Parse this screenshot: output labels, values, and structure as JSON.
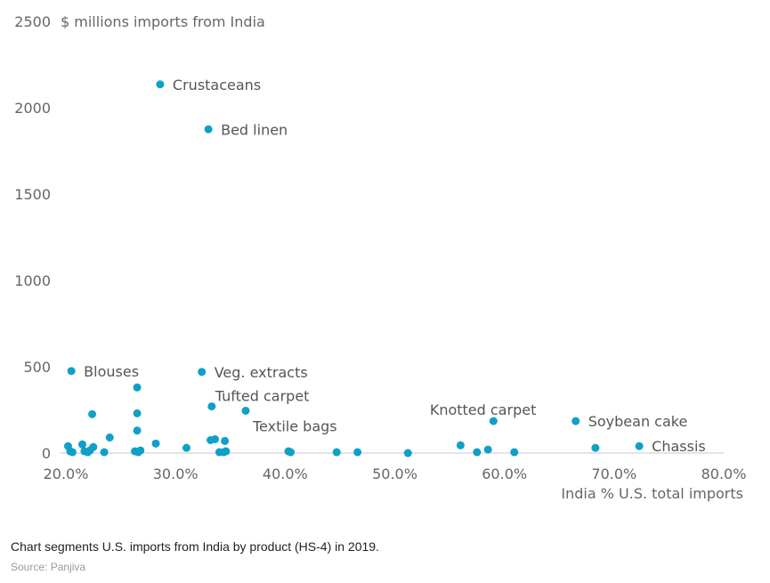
{
  "chart_data": {
    "type": "scatter",
    "ylabel": "$ millions imports from India",
    "xlabel": "India % U.S. total imports",
    "xlim": [
      20,
      80
    ],
    "ylim": [
      0,
      2500
    ],
    "x_ticks": [
      "20.0%",
      "30.0%",
      "40.0%",
      "50.0%",
      "60.0%",
      "70.0%",
      "80.0%"
    ],
    "x_tick_values": [
      20,
      30,
      40,
      50,
      60,
      70,
      80
    ],
    "y_ticks": [
      "0",
      "500",
      "1000",
      "1500",
      "2000",
      "2500"
    ],
    "y_tick_values": [
      0,
      500,
      1000,
      1500,
      2000,
      2500
    ],
    "point_color": "#0fa0c8",
    "grid": false,
    "points": [
      {
        "x": 28.6,
        "y": 2135,
        "label": "Crustaceans"
      },
      {
        "x": 33.0,
        "y": 1875,
        "label": "Bed linen"
      },
      {
        "x": 20.5,
        "y": 475,
        "label": "Blouses"
      },
      {
        "x": 32.4,
        "y": 470,
        "label": "Veg. extracts"
      },
      {
        "x": 33.3,
        "y": 270,
        "label": "Tufted carpet"
      },
      {
        "x": 36.4,
        "y": 245,
        "label": "Textile bags"
      },
      {
        "x": 59.0,
        "y": 185,
        "label": "Knotted carpet"
      },
      {
        "x": 66.5,
        "y": 185,
        "label": "Soybean cake"
      },
      {
        "x": 72.3,
        "y": 40,
        "label": "Chassis"
      },
      {
        "x": 26.5,
        "y": 380
      },
      {
        "x": 26.5,
        "y": 230
      },
      {
        "x": 26.5,
        "y": 130
      },
      {
        "x": 22.4,
        "y": 225
      },
      {
        "x": 24.0,
        "y": 90
      },
      {
        "x": 20.2,
        "y": 40
      },
      {
        "x": 20.4,
        "y": 10
      },
      {
        "x": 20.6,
        "y": 5
      },
      {
        "x": 21.5,
        "y": 50
      },
      {
        "x": 21.7,
        "y": 10
      },
      {
        "x": 22.0,
        "y": 5
      },
      {
        "x": 22.2,
        "y": 15
      },
      {
        "x": 22.5,
        "y": 35
      },
      {
        "x": 23.5,
        "y": 5
      },
      {
        "x": 26.3,
        "y": 10
      },
      {
        "x": 26.6,
        "y": 5
      },
      {
        "x": 26.8,
        "y": 15
      },
      {
        "x": 28.2,
        "y": 55
      },
      {
        "x": 31.0,
        "y": 30
      },
      {
        "x": 33.2,
        "y": 75
      },
      {
        "x": 33.6,
        "y": 80
      },
      {
        "x": 34.0,
        "y": 5
      },
      {
        "x": 34.4,
        "y": 5
      },
      {
        "x": 34.5,
        "y": 70
      },
      {
        "x": 34.6,
        "y": 10
      },
      {
        "x": 40.3,
        "y": 10
      },
      {
        "x": 40.5,
        "y": 5
      },
      {
        "x": 44.7,
        "y": 5
      },
      {
        "x": 46.6,
        "y": 5
      },
      {
        "x": 51.2,
        "y": 0
      },
      {
        "x": 56.0,
        "y": 45
      },
      {
        "x": 57.5,
        "y": 5
      },
      {
        "x": 58.5,
        "y": 20
      },
      {
        "x": 60.9,
        "y": 5
      },
      {
        "x": 68.3,
        "y": 30
      }
    ]
  },
  "caption": "Chart segments U.S. imports from India by product (HS-4) in 2019.",
  "source": "Source: Panjiva"
}
